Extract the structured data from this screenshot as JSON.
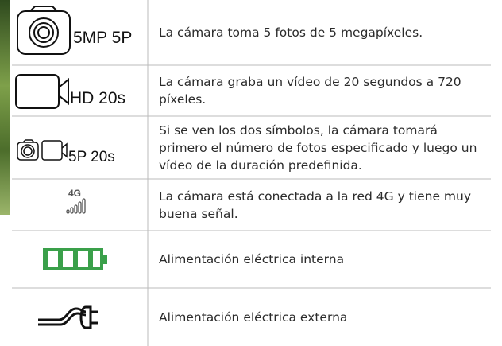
{
  "rows": [
    {
      "icon_text": "5MP 5P",
      "description": "La cámara toma 5 fotos de 5 megapíxeles."
    },
    {
      "icon_text": "HD 20s",
      "description": "La cámara graba un vídeo de 20 segundos a 720 píxeles."
    },
    {
      "icon_text": "5P 20s",
      "description": "Si se ven los dos símbolos, la cámara tomará primero el número de fotos especificado y luego un vídeo de la duración predefinida."
    },
    {
      "icon_text": "4G",
      "description": "La cámara está conectada a la red 4G y tiene muy buena señal."
    },
    {
      "description": "Alimentación eléctrica interna"
    },
    {
      "description": "Alimentación eléctrica externa"
    }
  ]
}
